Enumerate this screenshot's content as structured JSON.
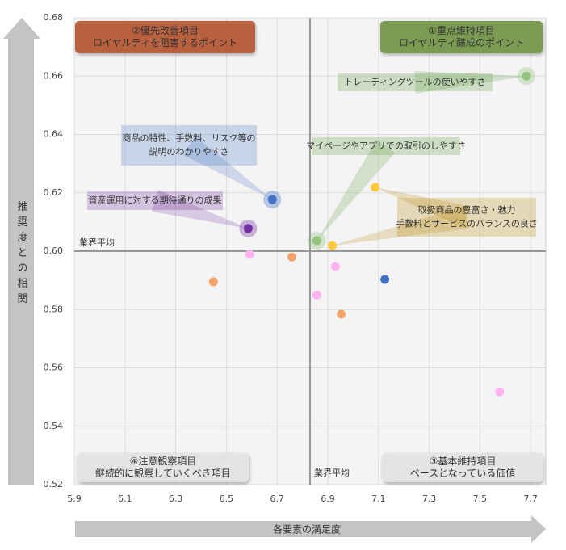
{
  "chart_data": {
    "type": "scatter",
    "x_title": "各要素の満足度",
    "y_title": "推奨度との相関",
    "xlim": [
      5.9,
      7.76
    ],
    "ylim": [
      0.52,
      0.68
    ],
    "xticks": [
      5.9,
      6.1,
      6.3,
      6.5,
      6.7,
      6.9,
      7.1,
      7.3,
      7.5,
      7.7
    ],
    "yticks": [
      0.52,
      0.54,
      0.56,
      0.58,
      {
        "value": 0.6,
        "label": "0.60"
      },
      0.62,
      0.64,
      0.66,
      0.68
    ],
    "grid": true,
    "series": [
      {
        "color": "#93c47d",
        "x": [
          7.683,
          6.857
        ],
        "values": [
          0.66,
          0.6036
        ],
        "halo": [
          true,
          true
        ]
      },
      {
        "color": "#4472c4",
        "x": [
          6.681,
          7.125
        ],
        "values": [
          0.6177,
          0.5903
        ],
        "halo": [
          true,
          false
        ]
      },
      {
        "color": "#7030a0",
        "x": [
          6.586
        ],
        "values": [
          0.6078
        ],
        "halo": [
          true
        ]
      },
      {
        "color": "#ffc83d",
        "x": [
          7.087,
          6.918
        ],
        "values": [
          0.6219,
          0.6019
        ],
        "halo": [
          false,
          false
        ]
      },
      {
        "color": "#f4a46b",
        "x": [
          6.758,
          6.449,
          6.953
        ],
        "values": [
          0.598,
          0.5895,
          0.5784
        ],
        "halo": [
          false,
          false,
          false
        ]
      },
      {
        "color": "#ffb3f0",
        "x": [
          6.592,
          6.93,
          6.857,
          7.578
        ],
        "values": [
          0.5989,
          0.5947,
          0.585,
          0.5518
        ],
        "halo": [
          false,
          false,
          false,
          false
        ]
      }
    ],
    "reference_lines": [
      {
        "axis": "x",
        "value": 6.83,
        "label": "業界平均"
      },
      {
        "axis": "y",
        "value": 0.6,
        "label": "業界平均"
      }
    ],
    "annotations": [
      {
        "lines": [
          "トレーディングツールの使いやすさ"
        ],
        "color": "#5a9a3a"
      },
      {
        "lines": [
          "マイページやアプリでの取引のしやすさ"
        ],
        "color": "#5a9a3a"
      },
      {
        "lines": [
          "商品の特性、手数料、リスク等の",
          "説明のわかりやすさ"
        ],
        "color": "#4472c4"
      },
      {
        "lines": [
          "資産運用に対する期待通りの成果"
        ],
        "color": "#7030a0"
      },
      {
        "lines": [
          "取扱商品の豊富さ・魅力",
          "手数料とサービスのバランスの良さ"
        ],
        "color": "#b88400"
      }
    ],
    "quadrants": [
      {
        "lines": [
          "②優先改善項目",
          "ロイヤルティを阻害するポイント"
        ],
        "color": "#b9603f"
      },
      {
        "lines": [
          "①重点維持項目",
          "ロイヤルティ醸成のポイント"
        ],
        "color": "#7b9b52"
      },
      {
        "lines": [
          "④注意観察項目",
          "継続的に観察していくべき項目"
        ],
        "color": "#e4e4e4"
      },
      {
        "lines": [
          "③基本維持項目",
          "ベースとなっている価値"
        ],
        "color": "#e4e4e4"
      }
    ]
  }
}
